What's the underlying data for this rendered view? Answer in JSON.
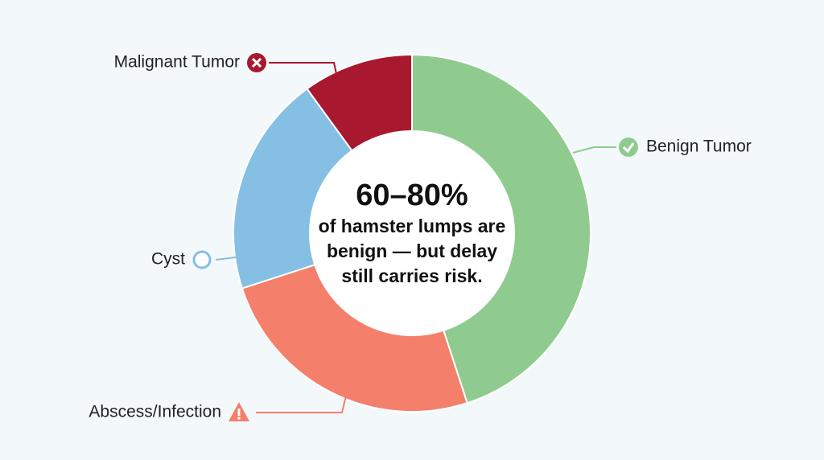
{
  "chart_data": {
    "type": "donut",
    "categories": [
      "Benign Tumor",
      "Abscess/Infection",
      "Cyst",
      "Malignant Tumor"
    ],
    "values": [
      45,
      25,
      20,
      10
    ],
    "colors": [
      "#8fcb8f",
      "#f47f6a",
      "#85bfe3",
      "#a8182f"
    ],
    "center_title": "60–80%",
    "center_lines": [
      "of  hamster lumps are",
      "benign — but delay",
      "still carries risk."
    ]
  }
}
